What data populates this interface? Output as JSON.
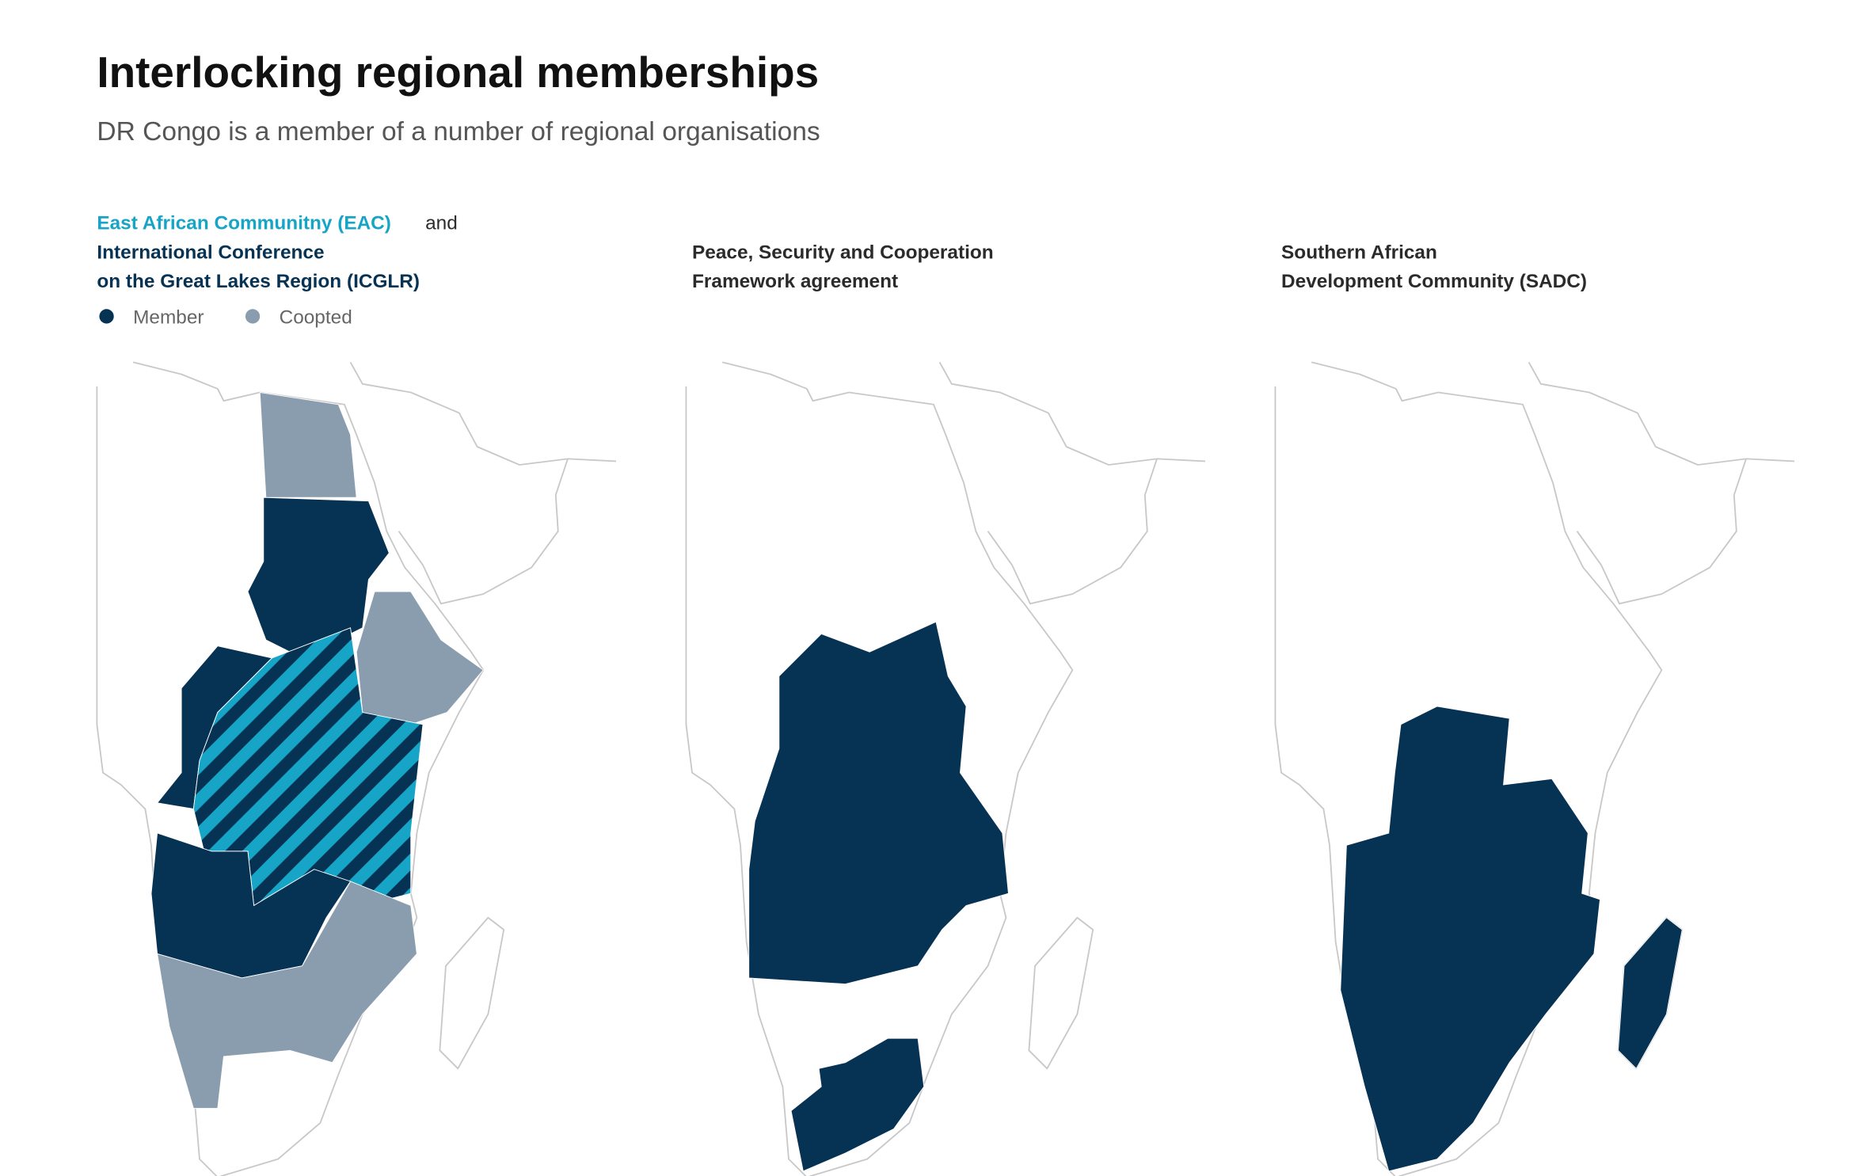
{
  "header": {
    "title": "Interlocking regional memberships",
    "subtitle": "DR Congo is a member of a number of regional organisations"
  },
  "panels": [
    {
      "title_eac": "East African Communitny (EAC)",
      "title_and": "and",
      "title_lines": [
        "International Conference",
        "on the Great Lakes Region (ICGLR)"
      ],
      "legend": [
        {
          "label": "Member",
          "color": "#063253"
        },
        {
          "label": "Coopted",
          "color": "#8a9daf"
        }
      ]
    },
    {
      "title_lines": [
        "Peace, Security and Cooperation",
        "Framework agreement"
      ]
    },
    {
      "title_lines": [
        "Southern African",
        "Development Community (SADC)"
      ]
    }
  ]
}
